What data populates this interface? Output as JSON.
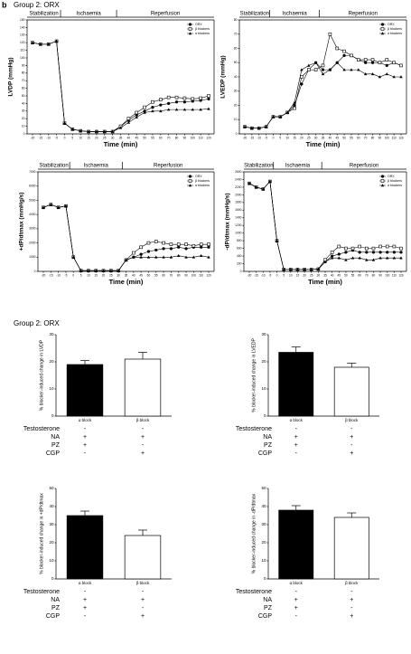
{
  "panel_label": "b",
  "group_titles": [
    "Group 2: ORX",
    "Group 2: ORX"
  ],
  "chart_data": [
    {
      "type": "line",
      "y_label": "LVDP (mmHg)",
      "x_label": "Time (min)",
      "phases": [
        "Stabilization",
        "Ischaemia",
        "Reperfusion"
      ],
      "legend": "upper right",
      "categories": [
        "-20",
        "-15",
        "-10",
        "-5",
        "0",
        "5",
        "10",
        "15",
        "20",
        "25",
        "30",
        "35",
        "40",
        "45",
        "50",
        "55",
        "60",
        "70",
        "80",
        "90",
        "100",
        "110",
        "120"
      ],
      "ylim": [
        0,
        150
      ],
      "yticks": [
        0,
        10,
        20,
        30,
        40,
        50,
        60,
        70,
        80,
        90,
        100,
        110,
        120,
        130,
        140,
        150
      ],
      "series": [
        {
          "name": "ORX",
          "color": "#000000",
          "marker": "circle",
          "values": [
            120,
            118,
            118,
            122,
            14,
            6,
            4,
            3,
            3,
            3,
            3,
            10,
            18,
            25,
            30,
            35,
            38,
            40,
            42,
            42,
            43,
            44,
            46
          ]
        },
        {
          "name": "β blockers",
          "color": "#000000",
          "marker": "square",
          "values": [
            120,
            118,
            118,
            122,
            14,
            6,
            4,
            3,
            3,
            3,
            3,
            10,
            20,
            28,
            35,
            42,
            45,
            48,
            48,
            47,
            46,
            47,
            50
          ]
        },
        {
          "name": "α blockers",
          "color": "#000000",
          "marker": "triangle",
          "values": [
            120,
            118,
            118,
            122,
            14,
            6,
            4,
            3,
            3,
            3,
            3,
            8,
            15,
            22,
            28,
            30,
            30,
            32,
            32,
            32,
            32,
            32,
            33
          ]
        }
      ]
    },
    {
      "type": "line",
      "y_label": "LVEDP (mmHg)",
      "x_label": "Time (min)",
      "phases": [
        "Stabilization",
        "Ischaemia",
        "Reperfusion"
      ],
      "legend": "upper right",
      "categories": [
        "-20",
        "-15",
        "-10",
        "-5",
        "0",
        "5",
        "10",
        "15",
        "20",
        "25",
        "30",
        "35",
        "40",
        "45",
        "50",
        "55",
        "60",
        "70",
        "80",
        "90",
        "100",
        "110",
        "120"
      ],
      "ylim": [
        0,
        80
      ],
      "yticks": [
        0,
        10,
        20,
        30,
        40,
        50,
        60,
        70,
        80
      ],
      "series": [
        {
          "name": "ORX",
          "color": "#000000",
          "marker": "circle",
          "values": [
            5,
            4,
            4,
            5,
            12,
            12,
            15,
            20,
            35,
            45,
            50,
            45,
            45,
            50,
            55,
            55,
            52,
            50,
            50,
            50,
            48,
            50,
            48
          ]
        },
        {
          "name": "β blockers",
          "color": "#000000",
          "marker": "square",
          "values": [
            5,
            4,
            4,
            5,
            12,
            12,
            15,
            18,
            40,
            45,
            45,
            48,
            70,
            60,
            58,
            55,
            52,
            52,
            52,
            50,
            52,
            50,
            48
          ]
        },
        {
          "name": "α blockers",
          "color": "#000000",
          "marker": "triangle",
          "values": [
            5,
            4,
            4,
            5,
            12,
            12,
            15,
            22,
            45,
            48,
            50,
            42,
            45,
            50,
            45,
            45,
            45,
            42,
            42,
            40,
            42,
            40,
            40
          ]
        }
      ]
    },
    {
      "type": "line",
      "y_label": "+dP/dtmax (mmHg/s)",
      "x_label": "Time (min)",
      "phases": [
        "Stabilization",
        "Ischaemia",
        "Reperfusion"
      ],
      "legend": "upper right",
      "categories": [
        "-20",
        "-15",
        "-10",
        "-5",
        "0",
        "5",
        "10",
        "15",
        "20",
        "25",
        "30",
        "35",
        "40",
        "45",
        "50",
        "55",
        "60",
        "70",
        "80",
        "90",
        "100",
        "110",
        "120"
      ],
      "ylim": [
        0,
        7000
      ],
      "yticks": [
        0,
        1000,
        2000,
        3000,
        4000,
        5000,
        6000,
        7000
      ],
      "series": [
        {
          "name": "ORX",
          "color": "#000000",
          "marker": "circle",
          "values": [
            4500,
            4700,
            4500,
            4600,
            1000,
            50,
            50,
            50,
            50,
            50,
            50,
            800,
            1000,
            1200,
            1400,
            1500,
            1600,
            1600,
            1700,
            1600,
            1700,
            1700,
            1700
          ]
        },
        {
          "name": "β blockers",
          "color": "#000000",
          "marker": "square",
          "values": [
            4500,
            4700,
            4500,
            4600,
            1000,
            50,
            50,
            50,
            50,
            50,
            50,
            800,
            1300,
            1700,
            2000,
            2100,
            2000,
            1900,
            1900,
            1900,
            1800,
            1900,
            1900
          ]
        },
        {
          "name": "α blockers",
          "color": "#000000",
          "marker": "triangle",
          "values": [
            4500,
            4700,
            4500,
            4600,
            1000,
            50,
            50,
            50,
            50,
            50,
            50,
            800,
            1000,
            1000,
            1000,
            1000,
            1000,
            1000,
            1100,
            1000,
            1000,
            1100,
            1000
          ]
        }
      ]
    },
    {
      "type": "line",
      "y_label": "-dP/dtmax (mmHg/s)",
      "x_label": "Time (min)",
      "phases": [
        "Stabilization",
        "Ischaemia",
        "Reperfusion"
      ],
      "legend": "upper right",
      "categories": [
        "-20",
        "-15",
        "-10",
        "-5",
        "0",
        "5",
        "10",
        "15",
        "20",
        "25",
        "30",
        "35",
        "40",
        "45",
        "50",
        "55",
        "60",
        "70",
        "80",
        "90",
        "100",
        "110",
        "120"
      ],
      "ylim": [
        0,
        2600
      ],
      "yticks": [
        0,
        200,
        400,
        600,
        800,
        1000,
        1200,
        1400,
        1600,
        1800,
        2000,
        2200,
        2400,
        2600
      ],
      "series": [
        {
          "name": "ORX",
          "color": "#000000",
          "marker": "circle",
          "values": [
            2300,
            2200,
            2150,
            2350,
            800,
            50,
            50,
            50,
            50,
            50,
            60,
            250,
            400,
            450,
            500,
            550,
            500,
            500,
            500,
            500,
            500,
            500,
            500
          ]
        },
        {
          "name": "β blockers",
          "color": "#000000",
          "marker": "square",
          "values": [
            2300,
            2200,
            2150,
            2350,
            800,
            50,
            50,
            50,
            50,
            50,
            60,
            300,
            500,
            650,
            600,
            600,
            650,
            600,
            600,
            650,
            650,
            650,
            600
          ]
        },
        {
          "name": "α blockers",
          "color": "#000000",
          "marker": "triangle",
          "values": [
            2300,
            2200,
            2150,
            2350,
            800,
            50,
            50,
            50,
            50,
            50,
            60,
            250,
            350,
            350,
            300,
            350,
            350,
            300,
            300,
            350,
            350,
            350,
            350
          ]
        }
      ]
    },
    {
      "type": "bar",
      "y_label": "% blocker-induced change in LVDP",
      "categories": [
        "α block",
        "β block"
      ],
      "values": [
        19,
        21
      ],
      "errors": [
        1.5,
        2.5
      ],
      "colors": [
        "#000000",
        "#ffffff"
      ],
      "ylim": [
        0,
        30
      ],
      "yticks": [
        0,
        10,
        20,
        30
      ],
      "conditions": {
        "rows": [
          "Testosterone",
          "NA",
          "PZ",
          "CGP"
        ],
        "values": [
          [
            "-",
            "-"
          ],
          [
            "+",
            "+"
          ],
          [
            "+",
            "-"
          ],
          [
            "-",
            "+"
          ]
        ]
      }
    },
    {
      "type": "bar",
      "y_label": "% blocker-induced change in LVEDP",
      "categories": [
        "α block",
        "β block"
      ],
      "values": [
        23.5,
        18
      ],
      "errors": [
        2,
        1.5
      ],
      "colors": [
        "#000000",
        "#ffffff"
      ],
      "ylim": [
        0,
        30
      ],
      "yticks": [
        0,
        10,
        20,
        30
      ],
      "conditions": {
        "rows": [
          "Testosterone",
          "NA",
          "PZ",
          "CGP"
        ],
        "values": [
          [
            "-",
            "-"
          ],
          [
            "+",
            "+"
          ],
          [
            "+",
            "-"
          ],
          [
            "-",
            "+"
          ]
        ]
      }
    },
    {
      "type": "bar",
      "y_label": "% blocker-induced change in +dP/dtmax",
      "categories": [
        "α block",
        "β block"
      ],
      "values": [
        35,
        24
      ],
      "errors": [
        2.5,
        3
      ],
      "colors": [
        "#000000",
        "#ffffff"
      ],
      "ylim": [
        0,
        50
      ],
      "yticks": [
        0,
        10,
        20,
        30,
        40,
        50
      ],
      "conditions": {
        "rows": [
          "Testosterone",
          "NA",
          "PZ",
          "CGP"
        ],
        "values": [
          [
            "-",
            "-"
          ],
          [
            "+",
            "+"
          ],
          [
            "+",
            "-"
          ],
          [
            "-",
            "+"
          ]
        ]
      }
    },
    {
      "type": "bar",
      "y_label": "% blocker-induced change in -dP/dtmax",
      "categories": [
        "α block",
        "β block"
      ],
      "values": [
        38,
        34
      ],
      "errors": [
        2.5,
        2.5
      ],
      "colors": [
        "#000000",
        "#ffffff"
      ],
      "ylim": [
        0,
        50
      ],
      "yticks": [
        0,
        10,
        20,
        30,
        40,
        50
      ],
      "conditions": {
        "rows": [
          "Testosterone",
          "NA",
          "PZ",
          "CGP"
        ],
        "values": [
          [
            "-",
            "-"
          ],
          [
            "+",
            "+"
          ],
          [
            "+",
            "-"
          ],
          [
            "-",
            "+"
          ]
        ]
      }
    }
  ]
}
